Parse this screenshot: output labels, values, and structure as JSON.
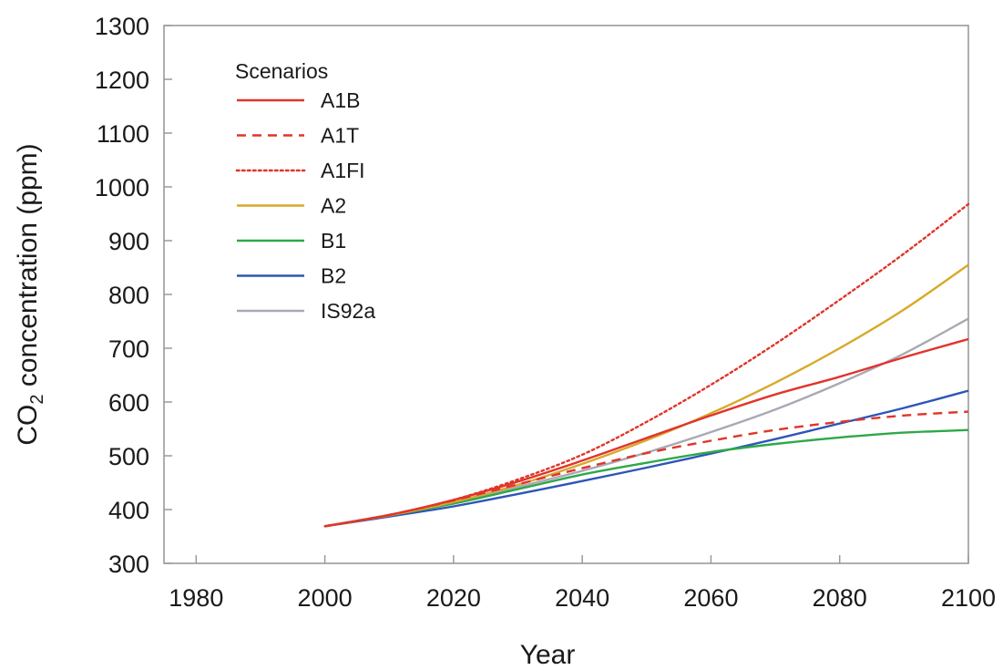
{
  "chart_data": {
    "type": "line",
    "xlabel": "Year",
    "ylabel": "CO2 concentration (ppm)",
    "ylabel_parts": {
      "main": "CO",
      "subscript": "2",
      "rest": " concentration (ppm)"
    },
    "xlim": [
      1975,
      2100
    ],
    "ylim": [
      300,
      1300
    ],
    "xticks": [
      1980,
      2000,
      2020,
      2040,
      2060,
      2080,
      2100
    ],
    "yticks": [
      300,
      400,
      500,
      600,
      700,
      800,
      900,
      1000,
      1100,
      1200,
      1300
    ],
    "grid": false,
    "legend": {
      "title": "Scenarios",
      "position": "top-left"
    },
    "x": [
      2000,
      2010,
      2020,
      2030,
      2040,
      2050,
      2060,
      2070,
      2080,
      2090,
      2100
    ],
    "series": [
      {
        "name": "A1B",
        "color": "#e0352b",
        "dash": "solid",
        "values": [
          369,
          390,
          418,
          452,
          491,
          533,
          575,
          614,
          647,
          683,
          717
        ]
      },
      {
        "name": "A1T",
        "color": "#e0352b",
        "dash": "dashed",
        "values": [
          369,
          390,
          417,
          447,
          477,
          505,
          528,
          548,
          563,
          575,
          582
        ]
      },
      {
        "name": "A1FI",
        "color": "#e0352b",
        "dash": "dotted",
        "values": [
          369,
          390,
          418,
          456,
          502,
          563,
          632,
          708,
          790,
          876,
          968
        ]
      },
      {
        "name": "A2",
        "color": "#d8a92a",
        "dash": "solid",
        "values": [
          369,
          389,
          414,
          446,
          485,
          529,
          579,
          636,
          700,
          772,
          855
        ]
      },
      {
        "name": "B1",
        "color": "#2ea84a",
        "dash": "solid",
        "values": [
          369,
          389,
          411,
          438,
          465,
          487,
          507,
          522,
          534,
          543,
          548
        ]
      },
      {
        "name": "B2",
        "color": "#2e55b8",
        "dash": "solid",
        "values": [
          369,
          387,
          406,
          429,
          453,
          478,
          504,
          531,
          560,
          589,
          621
        ]
      },
      {
        "name": "IS92a",
        "color": "#a9a9b5",
        "dash": "solid",
        "values": [
          369,
          390,
          414,
          442,
          472,
          506,
          544,
          586,
          635,
          690,
          755
        ]
      }
    ]
  }
}
